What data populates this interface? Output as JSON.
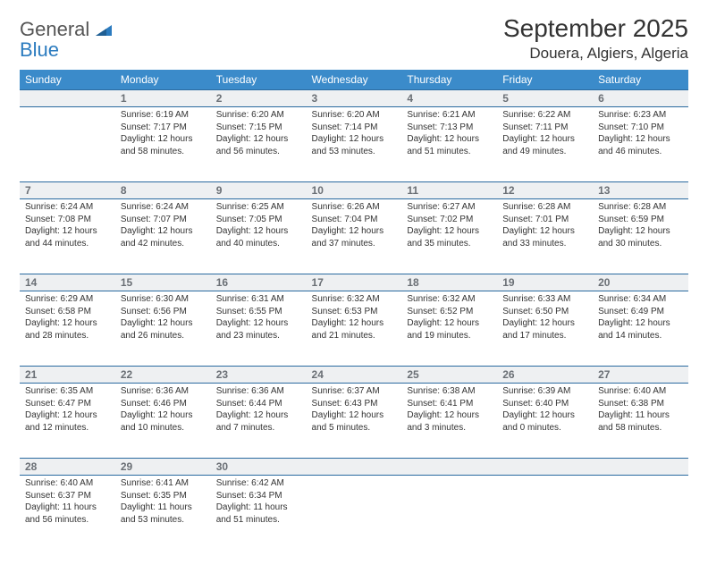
{
  "brand": {
    "part1": "General",
    "part2": "Blue"
  },
  "title": "September 2025",
  "location": "Douera, Algiers, Algeria",
  "colors": {
    "header_bg": "#3b8bca",
    "header_text": "#ffffff",
    "row_divider": "#2a6aa0",
    "daynum_bg": "#eef0f2",
    "daynum_text": "#6a6f75",
    "body_text": "#333333",
    "brand_blue": "#2b7bbf"
  },
  "weekdays": [
    "Sunday",
    "Monday",
    "Tuesday",
    "Wednesday",
    "Thursday",
    "Friday",
    "Saturday"
  ],
  "weeks": [
    [
      null,
      {
        "n": "1",
        "sr": "Sunrise: 6:19 AM",
        "ss": "Sunset: 7:17 PM",
        "dl": "Daylight: 12 hours and 58 minutes."
      },
      {
        "n": "2",
        "sr": "Sunrise: 6:20 AM",
        "ss": "Sunset: 7:15 PM",
        "dl": "Daylight: 12 hours and 56 minutes."
      },
      {
        "n": "3",
        "sr": "Sunrise: 6:20 AM",
        "ss": "Sunset: 7:14 PM",
        "dl": "Daylight: 12 hours and 53 minutes."
      },
      {
        "n": "4",
        "sr": "Sunrise: 6:21 AM",
        "ss": "Sunset: 7:13 PM",
        "dl": "Daylight: 12 hours and 51 minutes."
      },
      {
        "n": "5",
        "sr": "Sunrise: 6:22 AM",
        "ss": "Sunset: 7:11 PM",
        "dl": "Daylight: 12 hours and 49 minutes."
      },
      {
        "n": "6",
        "sr": "Sunrise: 6:23 AM",
        "ss": "Sunset: 7:10 PM",
        "dl": "Daylight: 12 hours and 46 minutes."
      }
    ],
    [
      {
        "n": "7",
        "sr": "Sunrise: 6:24 AM",
        "ss": "Sunset: 7:08 PM",
        "dl": "Daylight: 12 hours and 44 minutes."
      },
      {
        "n": "8",
        "sr": "Sunrise: 6:24 AM",
        "ss": "Sunset: 7:07 PM",
        "dl": "Daylight: 12 hours and 42 minutes."
      },
      {
        "n": "9",
        "sr": "Sunrise: 6:25 AM",
        "ss": "Sunset: 7:05 PM",
        "dl": "Daylight: 12 hours and 40 minutes."
      },
      {
        "n": "10",
        "sr": "Sunrise: 6:26 AM",
        "ss": "Sunset: 7:04 PM",
        "dl": "Daylight: 12 hours and 37 minutes."
      },
      {
        "n": "11",
        "sr": "Sunrise: 6:27 AM",
        "ss": "Sunset: 7:02 PM",
        "dl": "Daylight: 12 hours and 35 minutes."
      },
      {
        "n": "12",
        "sr": "Sunrise: 6:28 AM",
        "ss": "Sunset: 7:01 PM",
        "dl": "Daylight: 12 hours and 33 minutes."
      },
      {
        "n": "13",
        "sr": "Sunrise: 6:28 AM",
        "ss": "Sunset: 6:59 PM",
        "dl": "Daylight: 12 hours and 30 minutes."
      }
    ],
    [
      {
        "n": "14",
        "sr": "Sunrise: 6:29 AM",
        "ss": "Sunset: 6:58 PM",
        "dl": "Daylight: 12 hours and 28 minutes."
      },
      {
        "n": "15",
        "sr": "Sunrise: 6:30 AM",
        "ss": "Sunset: 6:56 PM",
        "dl": "Daylight: 12 hours and 26 minutes."
      },
      {
        "n": "16",
        "sr": "Sunrise: 6:31 AM",
        "ss": "Sunset: 6:55 PM",
        "dl": "Daylight: 12 hours and 23 minutes."
      },
      {
        "n": "17",
        "sr": "Sunrise: 6:32 AM",
        "ss": "Sunset: 6:53 PM",
        "dl": "Daylight: 12 hours and 21 minutes."
      },
      {
        "n": "18",
        "sr": "Sunrise: 6:32 AM",
        "ss": "Sunset: 6:52 PM",
        "dl": "Daylight: 12 hours and 19 minutes."
      },
      {
        "n": "19",
        "sr": "Sunrise: 6:33 AM",
        "ss": "Sunset: 6:50 PM",
        "dl": "Daylight: 12 hours and 17 minutes."
      },
      {
        "n": "20",
        "sr": "Sunrise: 6:34 AM",
        "ss": "Sunset: 6:49 PM",
        "dl": "Daylight: 12 hours and 14 minutes."
      }
    ],
    [
      {
        "n": "21",
        "sr": "Sunrise: 6:35 AM",
        "ss": "Sunset: 6:47 PM",
        "dl": "Daylight: 12 hours and 12 minutes."
      },
      {
        "n": "22",
        "sr": "Sunrise: 6:36 AM",
        "ss": "Sunset: 6:46 PM",
        "dl": "Daylight: 12 hours and 10 minutes."
      },
      {
        "n": "23",
        "sr": "Sunrise: 6:36 AM",
        "ss": "Sunset: 6:44 PM",
        "dl": "Daylight: 12 hours and 7 minutes."
      },
      {
        "n": "24",
        "sr": "Sunrise: 6:37 AM",
        "ss": "Sunset: 6:43 PM",
        "dl": "Daylight: 12 hours and 5 minutes."
      },
      {
        "n": "25",
        "sr": "Sunrise: 6:38 AM",
        "ss": "Sunset: 6:41 PM",
        "dl": "Daylight: 12 hours and 3 minutes."
      },
      {
        "n": "26",
        "sr": "Sunrise: 6:39 AM",
        "ss": "Sunset: 6:40 PM",
        "dl": "Daylight: 12 hours and 0 minutes."
      },
      {
        "n": "27",
        "sr": "Sunrise: 6:40 AM",
        "ss": "Sunset: 6:38 PM",
        "dl": "Daylight: 11 hours and 58 minutes."
      }
    ],
    [
      {
        "n": "28",
        "sr": "Sunrise: 6:40 AM",
        "ss": "Sunset: 6:37 PM",
        "dl": "Daylight: 11 hours and 56 minutes."
      },
      {
        "n": "29",
        "sr": "Sunrise: 6:41 AM",
        "ss": "Sunset: 6:35 PM",
        "dl": "Daylight: 11 hours and 53 minutes."
      },
      {
        "n": "30",
        "sr": "Sunrise: 6:42 AM",
        "ss": "Sunset: 6:34 PM",
        "dl": "Daylight: 11 hours and 51 minutes."
      },
      null,
      null,
      null,
      null
    ]
  ]
}
